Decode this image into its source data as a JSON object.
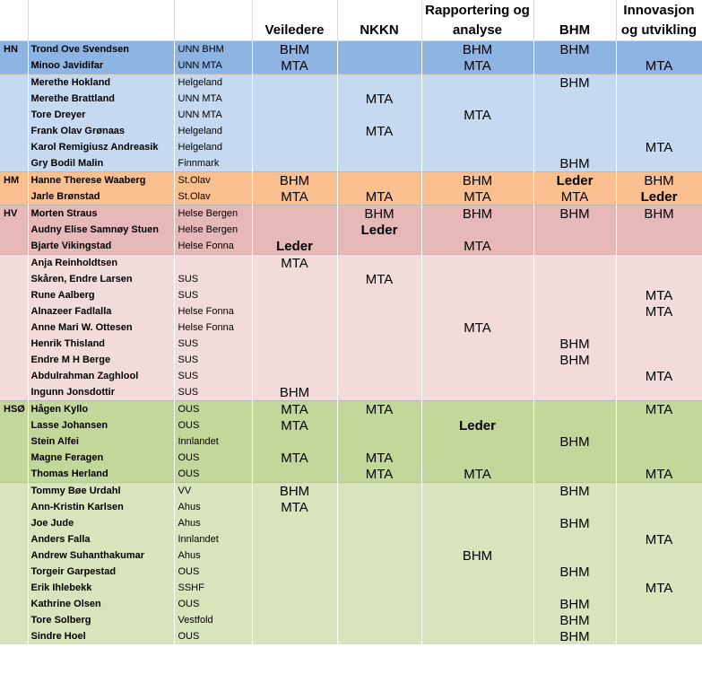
{
  "headers": [
    "",
    "",
    "",
    "Veiledere",
    "NKKN",
    "Rapportering og analyse",
    "BHM",
    "Innovasjon og utvikling"
  ],
  "rows": [
    {
      "region": "HN",
      "name": "Trond Ove Svendsen",
      "org": "UNN BHM",
      "v": [
        "BHM",
        "",
        "BHM",
        "BHM",
        ""
      ]
    },
    {
      "region": "",
      "name": "Minoo Javidifar",
      "org": "UNN MTA",
      "v": [
        "MTA",
        "",
        "MTA",
        "",
        "MTA"
      ]
    },
    {
      "region": "",
      "name": "Merethe Hokland",
      "org": "Helgeland",
      "v": [
        "",
        "",
        "",
        "BHM",
        ""
      ]
    },
    {
      "region": "",
      "name": "Merethe Brattland",
      "org": "UNN MTA",
      "v": [
        "",
        "MTA",
        "",
        "",
        ""
      ]
    },
    {
      "region": "",
      "name": "Tore Dreyer",
      "org": "UNN MTA",
      "v": [
        "",
        "",
        "MTA",
        "",
        ""
      ]
    },
    {
      "region": "",
      "name": "Frank Olav Grønaas",
      "org": "Helgeland",
      "v": [
        "",
        "MTA",
        "",
        "",
        ""
      ]
    },
    {
      "region": "",
      "name": "Karol Remigiusz Andreasik",
      "org": "Helgeland",
      "v": [
        "",
        "",
        "",
        "",
        "MTA"
      ]
    },
    {
      "region": "",
      "name": "Gry Bodil Malin",
      "org": "Finnmark",
      "v": [
        "",
        "",
        "",
        "BHM",
        ""
      ]
    },
    {
      "region": "HM",
      "name": "Hanne Therese Waaberg",
      "org": "St.Olav",
      "v": [
        "BHM",
        "",
        "BHM",
        "Leder",
        "BHM"
      ]
    },
    {
      "region": "",
      "name": "Jarle Brønstad",
      "org": "St.Olav",
      "v": [
        "MTA",
        "MTA",
        "MTA",
        "MTA",
        "Leder"
      ]
    },
    {
      "region": "HV",
      "name": "Morten Straus",
      "org": "Helse Bergen",
      "v": [
        "",
        "BHM",
        "BHM",
        "BHM",
        "BHM"
      ]
    },
    {
      "region": "",
      "name": "Audny Elise Samnøy Stuen",
      "org": "Helse Bergen",
      "v": [
        "",
        "Leder",
        "",
        "",
        ""
      ]
    },
    {
      "region": "",
      "name": "Bjarte Vikingstad",
      "org": "Helse Fonna",
      "v": [
        "Leder",
        "",
        "MTA",
        "",
        ""
      ]
    },
    {
      "region": "",
      "name": "Anja Reinholdtsen",
      "org": "",
      "v": [
        "MTA",
        "",
        "",
        "",
        ""
      ]
    },
    {
      "region": "",
      "name": "Skåren, Endre Larsen",
      "org": "SUS",
      "v": [
        "",
        "MTA",
        "",
        "",
        ""
      ]
    },
    {
      "region": "",
      "name": "Rune Aalberg",
      "org": "SUS",
      "v": [
        "",
        "",
        "",
        "",
        "MTA"
      ]
    },
    {
      "region": "",
      "name": "Alnazeer Fadlalla",
      "org": "Helse Fonna",
      "v": [
        "",
        "",
        "",
        "",
        "MTA"
      ]
    },
    {
      "region": "",
      "name": "Anne Mari W. Ottesen",
      "org": "Helse Fonna",
      "v": [
        "",
        "",
        "MTA",
        "",
        ""
      ]
    },
    {
      "region": "",
      "name": "Henrik Thisland",
      "org": "SUS",
      "v": [
        "",
        "",
        "",
        "BHM",
        ""
      ]
    },
    {
      "region": "",
      "name": "Endre M H Berge",
      "org": "SUS",
      "v": [
        "",
        "",
        "",
        "BHM",
        ""
      ]
    },
    {
      "region": "",
      "name": "Abdulrahman Zaghlool",
      "org": "SUS",
      "v": [
        "",
        "",
        "",
        "",
        "MTA"
      ]
    },
    {
      "region": "",
      "name": "Ingunn Jonsdottir",
      "org": "SUS",
      "v": [
        "BHM",
        "",
        "",
        "",
        ""
      ]
    },
    {
      "region": "HSØ",
      "name": "Hågen Kyllo",
      "org": "OUS",
      "v": [
        "MTA",
        "MTA",
        "",
        "",
        "MTA"
      ]
    },
    {
      "region": "",
      "name": "Lasse Johansen",
      "org": "OUS",
      "v": [
        "MTA",
        "",
        "Leder",
        "",
        ""
      ]
    },
    {
      "region": "",
      "name": "Stein Alfei",
      "org": "Innlandet",
      "v": [
        "",
        "",
        "",
        "BHM",
        ""
      ]
    },
    {
      "region": "",
      "name": "Magne Feragen",
      "org": "OUS",
      "v": [
        "MTA",
        "MTA",
        "",
        "",
        ""
      ]
    },
    {
      "region": "",
      "name": "Thomas Herland",
      "org": "OUS",
      "v": [
        "",
        "MTA",
        "MTA",
        "",
        "MTA"
      ]
    },
    {
      "region": "",
      "name": "Tommy Bøe Urdahl",
      "org": "VV",
      "v": [
        "BHM",
        "",
        "",
        "BHM",
        ""
      ]
    },
    {
      "region": "",
      "name": "Ann-Kristin Karlsen",
      "org": "Ahus",
      "v": [
        "MTA",
        "",
        "",
        "",
        ""
      ]
    },
    {
      "region": "",
      "name": "Joe Jude",
      "org": "Ahus",
      "v": [
        "",
        "",
        "",
        "BHM",
        ""
      ]
    },
    {
      "region": "",
      "name": "Anders Falla",
      "org": "Innlandet",
      "v": [
        "",
        "",
        "",
        "",
        "MTA"
      ]
    },
    {
      "region": "",
      "name": "Andrew Suhanthakumar",
      "org": "Ahus",
      "v": [
        "",
        "",
        "BHM",
        "",
        ""
      ]
    },
    {
      "region": "",
      "name": "Torgeir Garpestad",
      "org": "OUS",
      "v": [
        "",
        "",
        "",
        "BHM",
        ""
      ]
    },
    {
      "region": "",
      "name": "Erik Ihlebekk",
      "org": "SSHF",
      "v": [
        "",
        "",
        "",
        "",
        "MTA"
      ]
    },
    {
      "region": "",
      "name": "Kathrine Olsen",
      "org": "OUS",
      "v": [
        "",
        "",
        "",
        "BHM",
        ""
      ]
    },
    {
      "region": "",
      "name": "Tore Solberg",
      "org": "Vestfold",
      "v": [
        "",
        "",
        "",
        "BHM",
        ""
      ]
    },
    {
      "region": "",
      "name": "Sindre Hoel",
      "org": "OUS",
      "v": [
        "",
        "",
        "",
        "BHM",
        ""
      ]
    }
  ],
  "colors": {
    "hn_dark": "#8eb4e3",
    "hn_light": "#c5d9f1",
    "hm": "#fabf8f",
    "hv_dark": "#e6b8b7",
    "hv_light": "#f2dcdb",
    "hso_dark": "#c4d79b",
    "hso_light": "#d8e4bc"
  }
}
